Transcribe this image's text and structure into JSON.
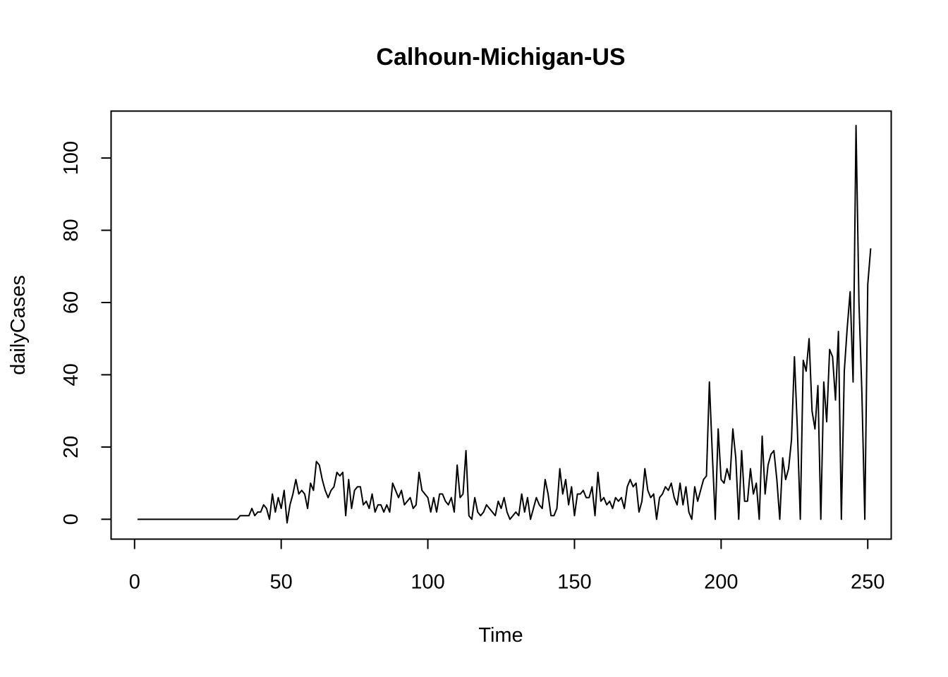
{
  "chart_data": {
    "type": "line",
    "title": "Calhoun-Michigan-US",
    "xlabel": "Time",
    "ylabel": "dailyCases",
    "xlim": [
      -8,
      258
    ],
    "ylim": [
      -5.5,
      113
    ],
    "grid": false,
    "legend": "none",
    "xticks": [
      0,
      50,
      100,
      150,
      200,
      250
    ],
    "yticks": [
      0,
      20,
      40,
      60,
      80,
      100
    ],
    "xtick_labels": [
      "0",
      "50",
      "100",
      "150",
      "200",
      "250"
    ],
    "ytick_labels": [
      "0",
      "20",
      "40",
      "60",
      "80",
      "100"
    ],
    "line_color": "#000000",
    "series": [
      {
        "x_start": 1,
        "values": [
          0,
          0,
          0,
          0,
          0,
          0,
          0,
          0,
          0,
          0,
          0,
          0,
          0,
          0,
          0,
          0,
          0,
          0,
          0,
          0,
          0,
          0,
          0,
          0,
          0,
          0,
          0,
          0,
          0,
          0,
          0,
          0,
          0,
          0,
          0,
          1,
          1,
          1,
          1,
          3,
          1,
          2,
          2,
          4,
          3,
          0,
          7,
          2,
          6,
          3,
          8,
          -1,
          4,
          7,
          11,
          7,
          8,
          7,
          3,
          10,
          8,
          16,
          15,
          11,
          8,
          6,
          8,
          9,
          13,
          12,
          13,
          1,
          11,
          3,
          8,
          9,
          9,
          4,
          5,
          3,
          7,
          2,
          4,
          4,
          2,
          4,
          2,
          10,
          8,
          6,
          8,
          4,
          5,
          6,
          3,
          4,
          13,
          8,
          7,
          6,
          2,
          6,
          2,
          7,
          7,
          5,
          4,
          6,
          2,
          15,
          6,
          7,
          19,
          1,
          0,
          6,
          2,
          1,
          2,
          4,
          3,
          2,
          1,
          5,
          3,
          6,
          2,
          0,
          1,
          2,
          1,
          7,
          2,
          6,
          0,
          3,
          6,
          4,
          3,
          11,
          7,
          1,
          1,
          3,
          14,
          7,
          11,
          4,
          9,
          1,
          7,
          7,
          8,
          6,
          6,
          9,
          1,
          13,
          5,
          6,
          4,
          5,
          3,
          6,
          5,
          6,
          3,
          9,
          11,
          9,
          10,
          2,
          5,
          14,
          8,
          6,
          7,
          0,
          6,
          7,
          9,
          8,
          10,
          6,
          4,
          10,
          4,
          9,
          2,
          0,
          9,
          5,
          8,
          11,
          12,
          38,
          18,
          0,
          25,
          11,
          10,
          14,
          11,
          25,
          17,
          0,
          19,
          5,
          5,
          14,
          7,
          10,
          0,
          23,
          7,
          15,
          18,
          19,
          11,
          0,
          17,
          11,
          14,
          22,
          45,
          25,
          0,
          44,
          41,
          50,
          30,
          25,
          37,
          0,
          38,
          27,
          47,
          45,
          33,
          52,
          0,
          41,
          53,
          63,
          38,
          109,
          60,
          35,
          0,
          65,
          75
        ]
      }
    ]
  }
}
